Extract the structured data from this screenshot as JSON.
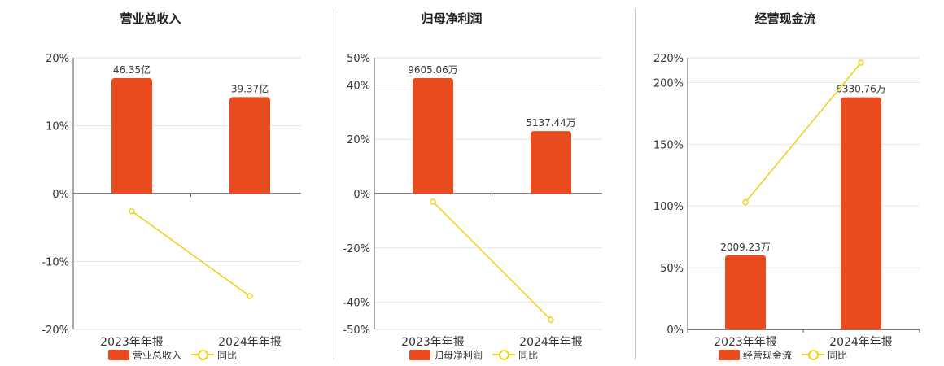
{
  "colors": {
    "bar": "#e84c1e",
    "line": "#f0d21c",
    "grid": "#e6e6e6",
    "axis": "#555555",
    "text": "#333333"
  },
  "chart_data": [
    {
      "type": "bar",
      "title": "营业总收入",
      "categories": [
        "2023年年报",
        "2024年年报"
      ],
      "series": [
        {
          "name": "营业总收入",
          "type": "bar",
          "values": [
            17,
            14.2
          ],
          "labels": [
            "46.35亿",
            "39.37亿"
          ]
        },
        {
          "name": "同比",
          "type": "line",
          "values": [
            -2.6,
            -15.1
          ]
        }
      ],
      "yticks": [
        "20%",
        "10%",
        "0%",
        "-10%",
        "-20%"
      ],
      "ytick_values": [
        20,
        10,
        0,
        -10,
        -20
      ],
      "ylim": [
        -20,
        20
      ],
      "grid": true,
      "legend_position": "bottom"
    },
    {
      "type": "bar",
      "title": "归母净利润",
      "categories": [
        "2023年年报",
        "2024年年报"
      ],
      "series": [
        {
          "name": "归母净利润",
          "type": "bar",
          "values": [
            42.5,
            23
          ],
          "labels": [
            "9605.06万",
            "5137.44万"
          ]
        },
        {
          "name": "同比",
          "type": "line",
          "values": [
            -3,
            -46.5
          ]
        }
      ],
      "yticks": [
        "50%",
        "40%",
        "20%",
        "0%",
        "-20%",
        "-40%",
        "-50%"
      ],
      "ytick_values": [
        50,
        40,
        20,
        0,
        -20,
        -40,
        -50
      ],
      "ylim": [
        -50,
        50
      ],
      "grid": true,
      "legend_position": "bottom"
    },
    {
      "type": "bar",
      "title": "经营现金流",
      "categories": [
        "2023年年报",
        "2024年年报"
      ],
      "series": [
        {
          "name": "经营现金流",
          "type": "bar",
          "values": [
            60,
            188
          ],
          "labels": [
            "2009.23万",
            "6330.76万"
          ]
        },
        {
          "name": "同比",
          "type": "line",
          "values": [
            103,
            216
          ]
        }
      ],
      "yticks": [
        "220%",
        "200%",
        "150%",
        "100%",
        "50%",
        "0%"
      ],
      "ytick_values": [
        220,
        200,
        150,
        100,
        50,
        0
      ],
      "ylim": [
        0,
        220
      ],
      "grid": true,
      "legend_position": "bottom"
    }
  ]
}
